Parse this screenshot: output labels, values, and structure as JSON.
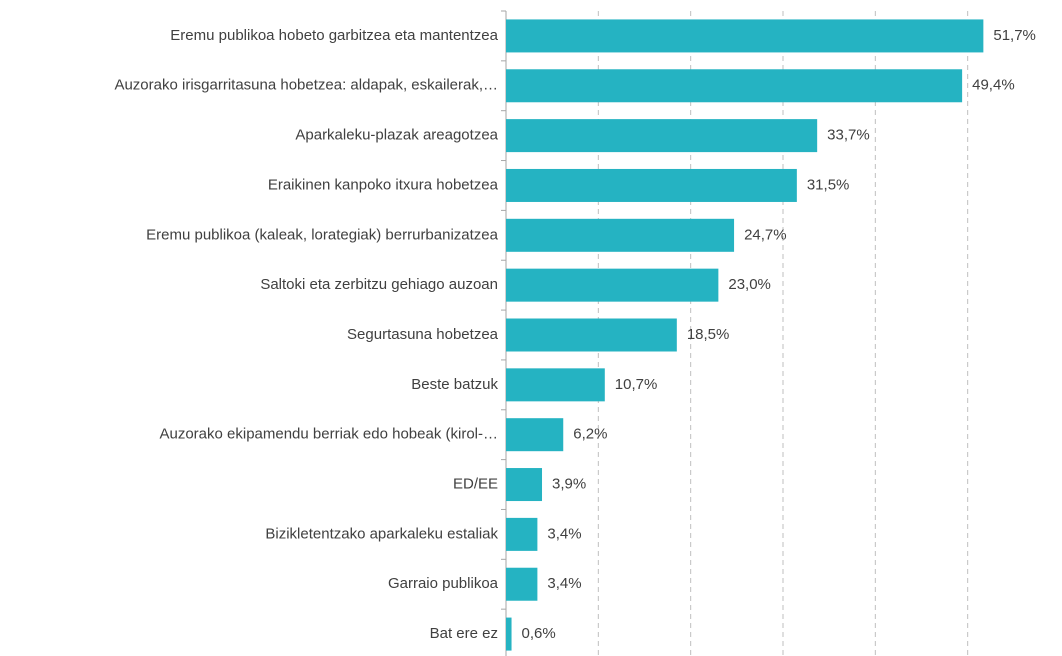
{
  "chart_data": {
    "type": "bar",
    "orientation": "horizontal",
    "categories": [
      "Eremu publikoa hobeto garbitzea eta mantentzea",
      "Auzorako irisgarritasuna hobetzea: aldapak, eskailerak,…",
      "Aparkaleku-plazak areagotzea",
      "Eraikinen kanpoko itxura hobetzea",
      "Eremu publikoa (kaleak, lorategiak) berrurbanizatzea",
      "Saltoki eta zerbitzu gehiago auzoan",
      "Segurtasuna hobetzea",
      "Beste batzuk",
      "Auzorako ekipamendu berriak edo hobeak (kirol-…",
      "ED/EE",
      "Bizikletentzako aparkaleku estaliak",
      "Garraio publikoa",
      "Bat ere ez"
    ],
    "values": [
      51.7,
      49.4,
      33.7,
      31.5,
      24.7,
      23.0,
      18.5,
      10.7,
      6.2,
      3.9,
      3.4,
      3.4,
      0.6
    ],
    "value_labels": [
      "51,7%",
      "49,4%",
      "33,7%",
      "31,5%",
      "24,7%",
      "23,0%",
      "18,5%",
      "10,7%",
      "6,2%",
      "3,9%",
      "3,4%",
      "3,4%",
      "0,6%"
    ],
    "color": "#25b3c2",
    "xlim": [
      0,
      60
    ],
    "xticks": [
      10,
      20,
      30,
      40,
      50
    ],
    "grid": true
  }
}
